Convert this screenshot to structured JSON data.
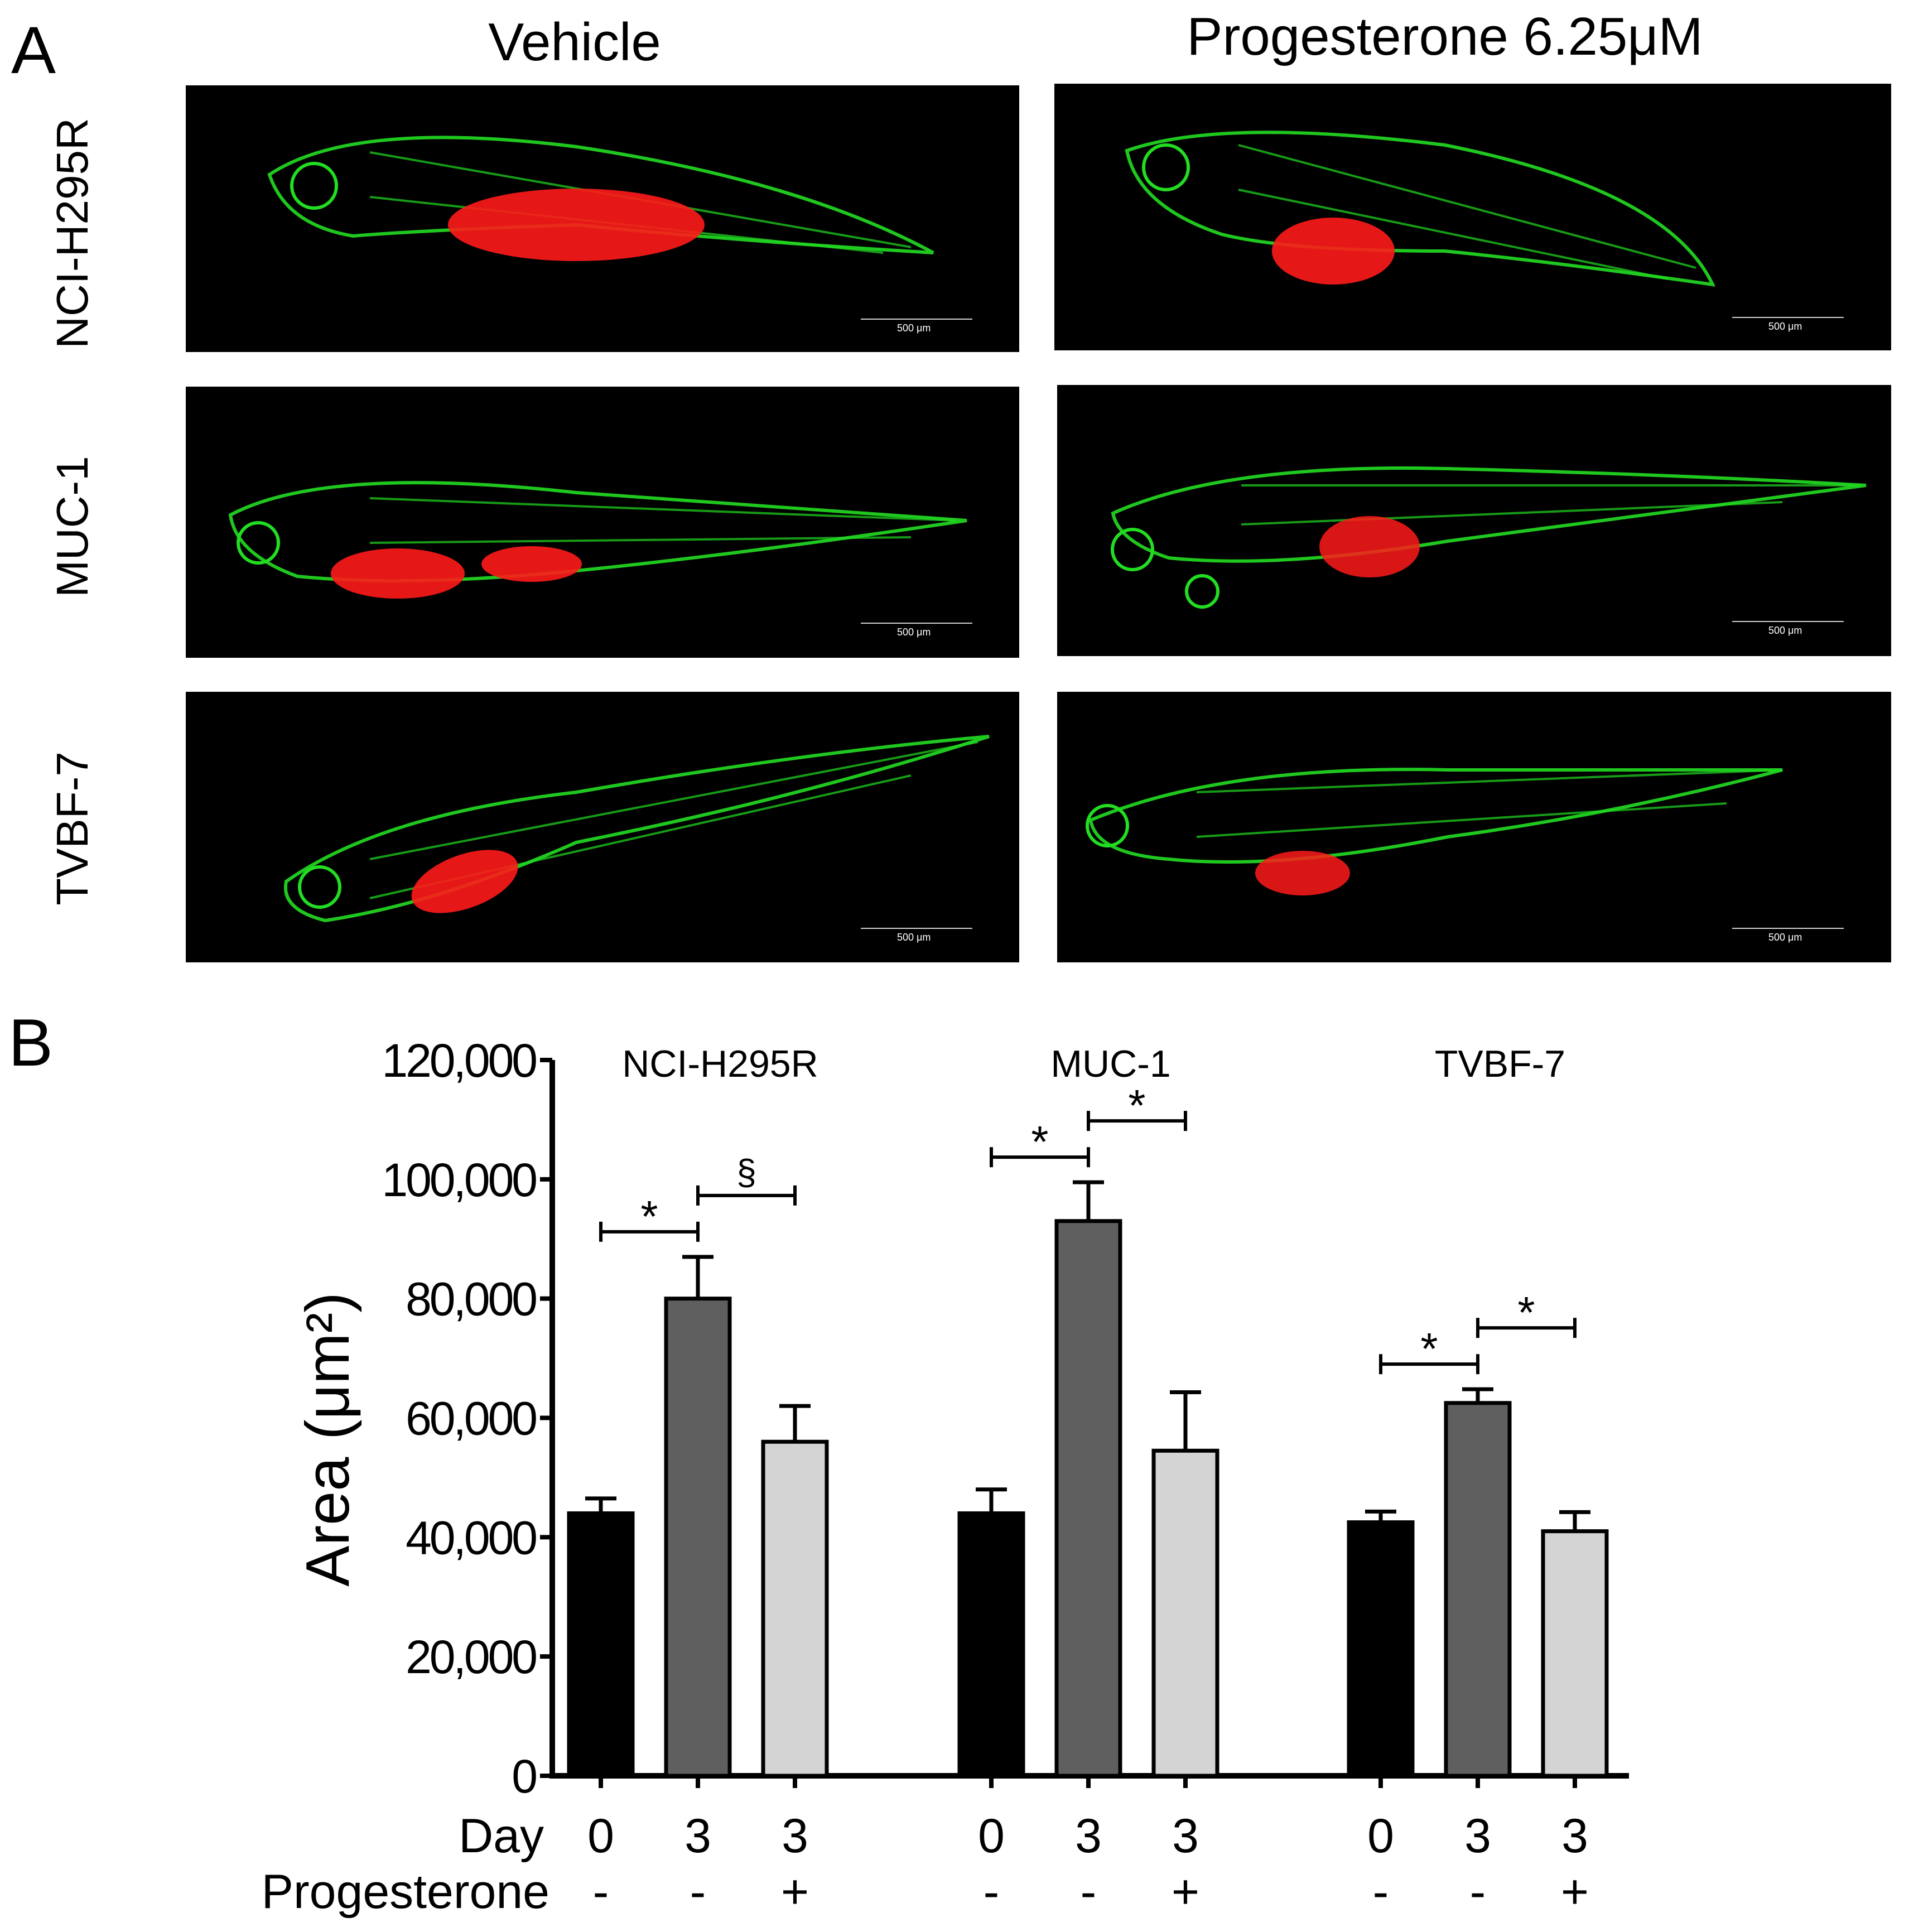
{
  "panel_a": {
    "letter": "A",
    "columns": [
      "Vehicle",
      "Progesterone 6.25μM"
    ],
    "rows": [
      "NCI-H295R",
      "MUC-1",
      "TVBF-7"
    ],
    "scale_bar_label": "500 μm",
    "colors": {
      "vessels": "#22dd22",
      "tumor": "#ff1a1a",
      "background": "#000000"
    }
  },
  "chart_data": {
    "type": "bar",
    "panel_letter": "B",
    "ylabel": "Area (μm²)",
    "ylim": [
      0,
      120000
    ],
    "yticks": [
      0,
      20000,
      40000,
      60000,
      80000,
      100000,
      120000
    ],
    "ytick_labels": [
      "0",
      "20,000",
      "40,000",
      "60,000",
      "80,000",
      "100,000",
      "120,000"
    ],
    "row_labels": {
      "day": "Day",
      "progesterone": "Progesterone"
    },
    "groups": [
      {
        "name": "NCI-H295R",
        "bars": [
          {
            "day": "0",
            "progesterone": "-",
            "value": 44000,
            "error": 2500,
            "color": "#000000"
          },
          {
            "day": "3",
            "progesterone": "-",
            "value": 80000,
            "error": 7000,
            "color": "#5f5f5f"
          },
          {
            "day": "3",
            "progesterone": "+",
            "value": 56000,
            "error": 6000,
            "color": "#d4d4d4"
          }
        ],
        "significance": [
          {
            "from": 0,
            "to": 1,
            "symbol": "*"
          },
          {
            "from": 1,
            "to": 2,
            "symbol": "§"
          }
        ]
      },
      {
        "name": "MUC-1",
        "bars": [
          {
            "day": "0",
            "progesterone": "-",
            "value": 44000,
            "error": 4000,
            "color": "#000000"
          },
          {
            "day": "3",
            "progesterone": "-",
            "value": 93000,
            "error": 6500,
            "color": "#5f5f5f"
          },
          {
            "day": "3",
            "progesterone": "+",
            "value": 54500,
            "error": 9800,
            "color": "#d4d4d4"
          }
        ],
        "significance": [
          {
            "from": 0,
            "to": 1,
            "symbol": "*"
          },
          {
            "from": 1,
            "to": 2,
            "symbol": "*"
          }
        ]
      },
      {
        "name": "TVBF-7",
        "bars": [
          {
            "day": "0",
            "progesterone": "-",
            "value": 42500,
            "error": 1800,
            "color": "#000000"
          },
          {
            "day": "3",
            "progesterone": "-",
            "value": 62500,
            "error": 2300,
            "color": "#5f5f5f"
          },
          {
            "day": "3",
            "progesterone": "+",
            "value": 41000,
            "error": 3200,
            "color": "#d4d4d4"
          }
        ],
        "significance": [
          {
            "from": 0,
            "to": 1,
            "symbol": "*"
          },
          {
            "from": 1,
            "to": 2,
            "symbol": "*"
          }
        ]
      }
    ]
  }
}
